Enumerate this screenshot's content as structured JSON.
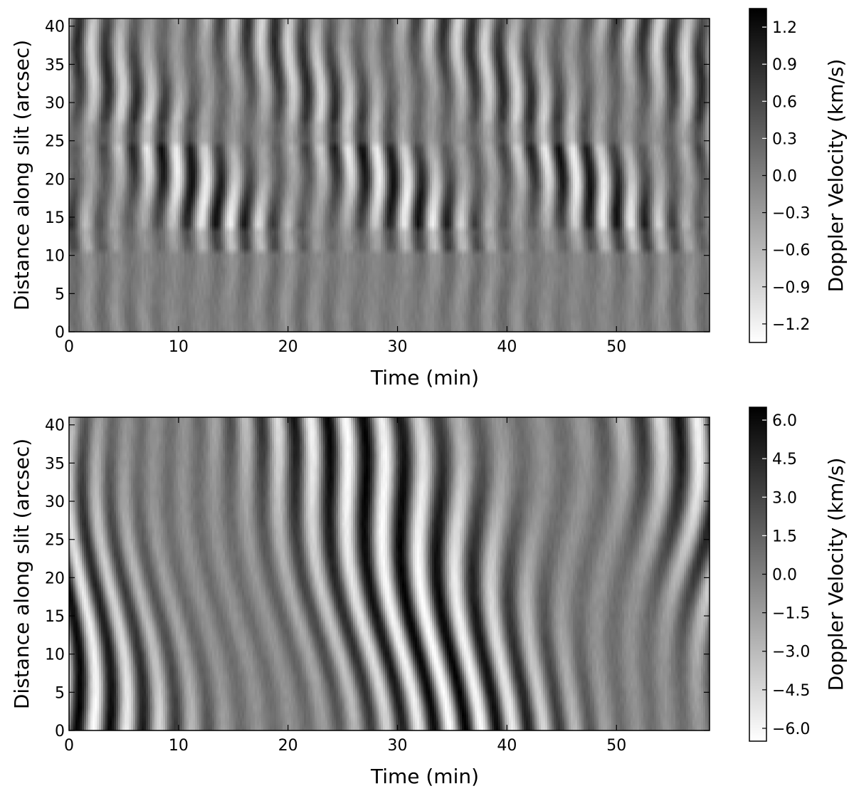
{
  "chart_data": [
    {
      "type": "heatmap",
      "title": "",
      "xlabel": "Time (min)",
      "ylabel": "Distance along slit (arcsec)",
      "xlim": [
        0,
        58.5
      ],
      "ylim": [
        0,
        41
      ],
      "xticks": [
        "0",
        "10",
        "20",
        "30",
        "40",
        "50"
      ],
      "yticks": [
        "0",
        "5",
        "10",
        "15",
        "20",
        "25",
        "30",
        "35",
        "40"
      ],
      "colorbar": {
        "label": "Doppler Velocity (km/s)",
        "range": [
          -1.35,
          1.35
        ],
        "ticks": [
          "1.2",
          "0.9",
          "0.6",
          "0.3",
          "0.0",
          "−0.3",
          "−0.6",
          "−0.9",
          "−1.2"
        ],
        "colormap": "gray (white = negative, black = positive)"
      },
      "pattern": {
        "description": "periodic Doppler oscillation ridges, weak below 10 arcsec",
        "approx_period_min": 2.6,
        "max_amplitude_km_s": 1.3
      }
    },
    {
      "type": "heatmap",
      "title": "",
      "xlabel": "Time (min)",
      "ylabel": "Distance along slit (arcsec)",
      "xlim": [
        0,
        58.5
      ],
      "ylim": [
        0,
        41
      ],
      "xticks": [
        "0",
        "10",
        "20",
        "30",
        "40",
        "50"
      ],
      "yticks": [
        "0",
        "5",
        "10",
        "15",
        "20",
        "25",
        "30",
        "35",
        "40"
      ],
      "colorbar": {
        "label": "Doppler Velocity (km/s)",
        "range": [
          -6.5,
          6.5
        ],
        "ticks": [
          "6.0",
          "4.5",
          "3.0",
          "1.5",
          "0.0",
          "−1.5",
          "−3.0",
          "−4.5",
          "−6.0"
        ],
        "colormap": "gray (white = negative, black = positive)"
      },
      "pattern": {
        "description": "inclined periodic Doppler oscillation ridges",
        "approx_period_min": 2.9,
        "max_amplitude_km_s": 6.3
      }
    }
  ]
}
